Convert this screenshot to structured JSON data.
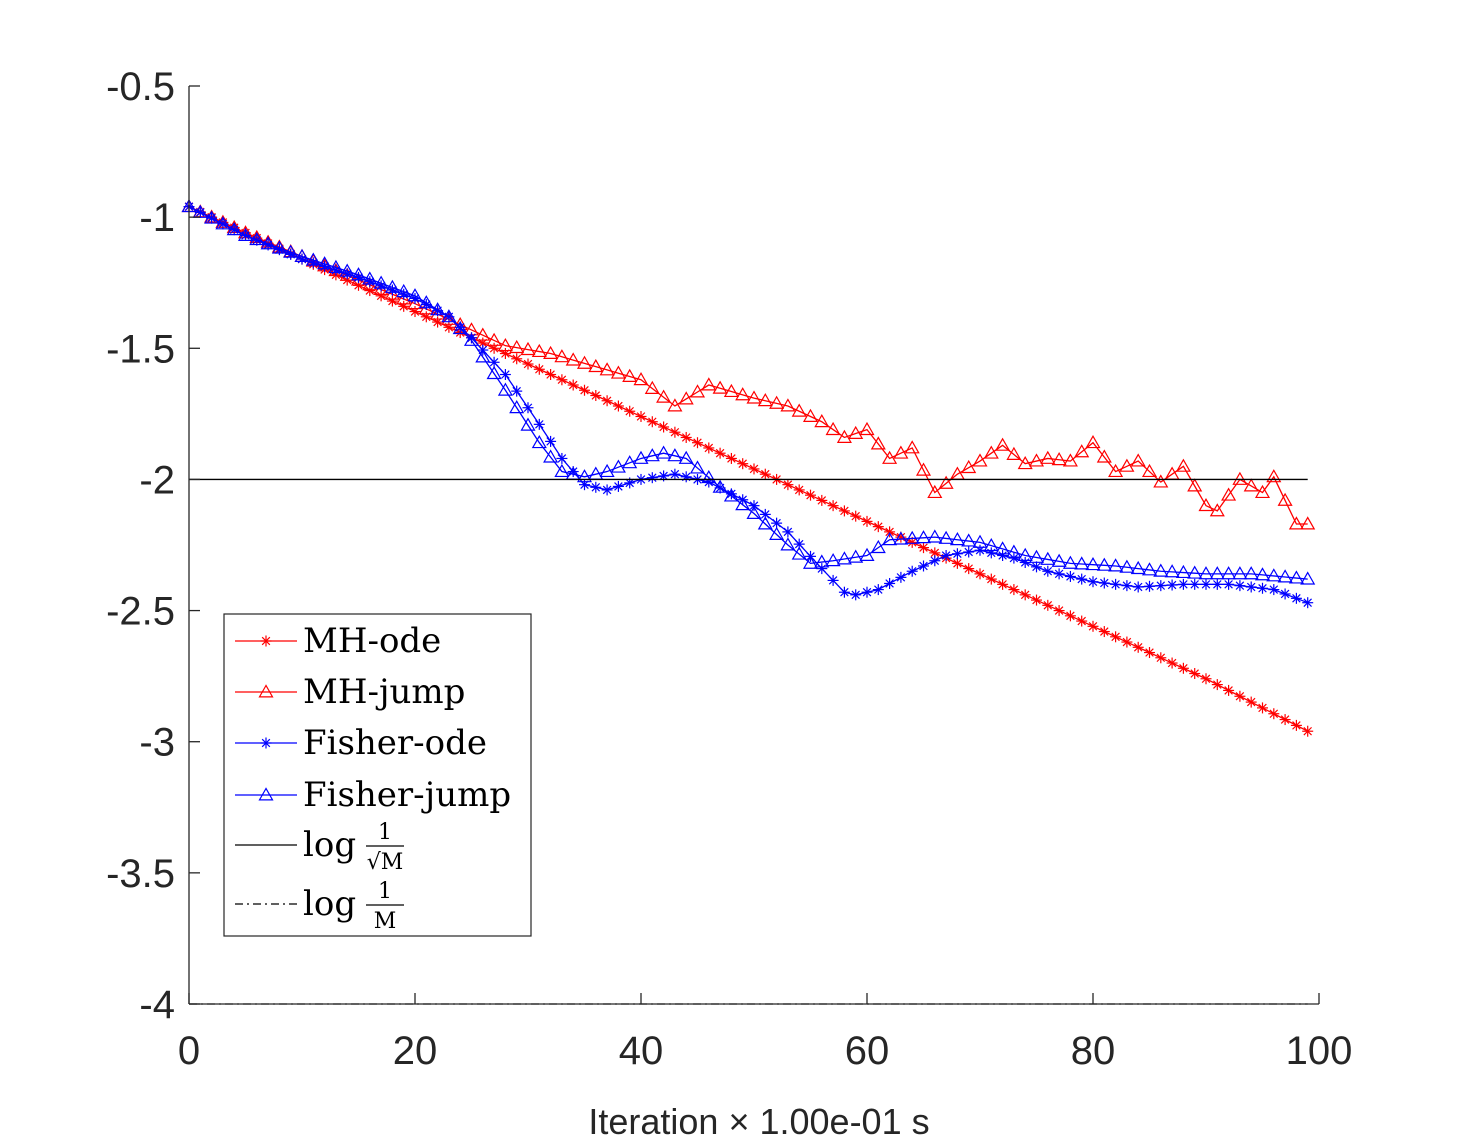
{
  "chart_data": {
    "type": "line",
    "title": "",
    "xlabel": "Iteration × 1.00e-01 s",
    "ylabel": "",
    "xlim": [
      0,
      100
    ],
    "ylim": [
      -4,
      -0.5
    ],
    "x_ticks": [
      0,
      20,
      40,
      60,
      80,
      100
    ],
    "x_tick_labels": [
      "0",
      "20",
      "40",
      "60",
      "80",
      "100"
    ],
    "y_ticks": [
      -0.5,
      -1,
      -1.5,
      -2,
      -2.5,
      -3,
      -3.5,
      -4
    ],
    "y_tick_labels": [
      "-0.5",
      "-1",
      "-1.5",
      "-2",
      "-2.5",
      "-3",
      "-3.5",
      "-4"
    ],
    "grid": false,
    "legend_position": "lower-left",
    "series": [
      {
        "name": "MH-ode",
        "color": "#ff0000",
        "marker": "asterisk",
        "style": "solid",
        "points": [
          [
            0,
            -0.96
          ],
          [
            10,
            -1.16
          ],
          [
            20,
            -1.36
          ],
          [
            30,
            -1.56
          ],
          [
            40,
            -1.76
          ],
          [
            50,
            -1.96
          ],
          [
            60,
            -2.16
          ],
          [
            70,
            -2.36
          ],
          [
            80,
            -2.56
          ],
          [
            90,
            -2.76
          ],
          [
            99,
            -2.96
          ]
        ]
      },
      {
        "name": "MH-jump",
        "color": "#ff0000",
        "marker": "triangle",
        "style": "solid",
        "points": [
          [
            0,
            -0.96
          ],
          [
            5,
            -1.06
          ],
          [
            10,
            -1.15
          ],
          [
            15,
            -1.24
          ],
          [
            20,
            -1.33
          ],
          [
            25,
            -1.43
          ],
          [
            28,
            -1.49
          ],
          [
            32,
            -1.52
          ],
          [
            36,
            -1.57
          ],
          [
            40,
            -1.62
          ],
          [
            43,
            -1.72
          ],
          [
            46,
            -1.64
          ],
          [
            50,
            -1.69
          ],
          [
            53,
            -1.72
          ],
          [
            56,
            -1.78
          ],
          [
            58,
            -1.84
          ],
          [
            60,
            -1.81
          ],
          [
            62,
            -1.92
          ],
          [
            64,
            -1.88
          ],
          [
            66,
            -2.05
          ],
          [
            68,
            -1.98
          ],
          [
            70,
            -1.93
          ],
          [
            72,
            -1.87
          ],
          [
            74,
            -1.94
          ],
          [
            76,
            -1.92
          ],
          [
            78,
            -1.93
          ],
          [
            80,
            -1.86
          ],
          [
            82,
            -1.97
          ],
          [
            84,
            -1.93
          ],
          [
            86,
            -2.01
          ],
          [
            88,
            -1.95
          ],
          [
            90,
            -2.1
          ],
          [
            91,
            -2.12
          ],
          [
            93,
            -2.0
          ],
          [
            95,
            -2.05
          ],
          [
            96,
            -1.99
          ],
          [
            98,
            -2.17
          ],
          [
            99,
            -2.17
          ]
        ]
      },
      {
        "name": "Fisher-ode",
        "color": "#0000ff",
        "marker": "asterisk",
        "style": "solid",
        "points": [
          [
            0,
            -0.96
          ],
          [
            5,
            -1.07
          ],
          [
            10,
            -1.16
          ],
          [
            15,
            -1.23
          ],
          [
            20,
            -1.31
          ],
          [
            23,
            -1.38
          ],
          [
            25,
            -1.46
          ],
          [
            28,
            -1.6
          ],
          [
            31,
            -1.79
          ],
          [
            33,
            -1.92
          ],
          [
            35,
            -2.02
          ],
          [
            37,
            -2.04
          ],
          [
            40,
            -2.0
          ],
          [
            43,
            -1.98
          ],
          [
            46,
            -2.01
          ],
          [
            50,
            -2.1
          ],
          [
            53,
            -2.2
          ],
          [
            56,
            -2.34
          ],
          [
            58,
            -2.43
          ],
          [
            59,
            -2.44
          ],
          [
            61,
            -2.42
          ],
          [
            64,
            -2.35
          ],
          [
            67,
            -2.29
          ],
          [
            70,
            -2.27
          ],
          [
            73,
            -2.3
          ],
          [
            76,
            -2.35
          ],
          [
            80,
            -2.39
          ],
          [
            84,
            -2.41
          ],
          [
            88,
            -2.4
          ],
          [
            92,
            -2.4
          ],
          [
            96,
            -2.42
          ],
          [
            99,
            -2.47
          ]
        ]
      },
      {
        "name": "Fisher-jump",
        "color": "#0000ff",
        "marker": "triangle",
        "style": "solid",
        "points": [
          [
            0,
            -0.96
          ],
          [
            5,
            -1.07
          ],
          [
            10,
            -1.15
          ],
          [
            15,
            -1.22
          ],
          [
            20,
            -1.3
          ],
          [
            23,
            -1.38
          ],
          [
            25,
            -1.47
          ],
          [
            28,
            -1.66
          ],
          [
            31,
            -1.86
          ],
          [
            33,
            -1.97
          ],
          [
            35,
            -1.99
          ],
          [
            37,
            -1.97
          ],
          [
            40,
            -1.92
          ],
          [
            42,
            -1.9
          ],
          [
            44,
            -1.92
          ],
          [
            47,
            -2.03
          ],
          [
            50,
            -2.13
          ],
          [
            53,
            -2.25
          ],
          [
            55,
            -2.32
          ],
          [
            57,
            -2.31
          ],
          [
            60,
            -2.29
          ],
          [
            62,
            -2.23
          ],
          [
            66,
            -2.22
          ],
          [
            70,
            -2.24
          ],
          [
            74,
            -2.29
          ],
          [
            78,
            -2.32
          ],
          [
            82,
            -2.33
          ],
          [
            86,
            -2.35
          ],
          [
            90,
            -2.36
          ],
          [
            94,
            -2.36
          ],
          [
            99,
            -2.38
          ]
        ]
      },
      {
        "name": "log 1/√M",
        "color": "#000000",
        "marker": "none",
        "style": "solid",
        "points": [
          [
            0,
            -2.0
          ],
          [
            99,
            -2.0
          ]
        ]
      },
      {
        "name": "log 1/M",
        "color": "#000000",
        "marker": "none",
        "style": "dashdot",
        "points": [
          [
            0,
            -4.0
          ],
          [
            99,
            -4.0
          ]
        ]
      }
    ],
    "legend": {
      "entries": [
        {
          "label": "MH-ode"
        },
        {
          "label": "MH-jump"
        },
        {
          "label": "Fisher-ode"
        },
        {
          "label": "Fisher-jump"
        },
        {
          "label": "log",
          "frac_num": "1",
          "frac_den": "√M"
        },
        {
          "label": "log",
          "frac_num": "1",
          "frac_den": "M"
        }
      ]
    }
  }
}
